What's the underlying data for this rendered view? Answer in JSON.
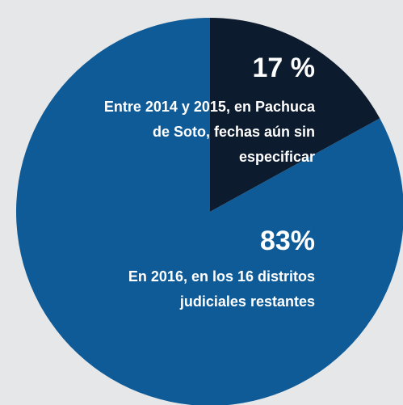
{
  "chart_data": {
    "type": "pie",
    "categories": [
      "Entre 2014 y 2015, en Pachuca de Soto, fechas aún sin especificar",
      "En 2016, en los 16 distritos judiciales restantes"
    ],
    "values": [
      17,
      83
    ],
    "value_labels": [
      "17 %",
      "83%"
    ],
    "colors": [
      "#0d1b2e",
      "#0f5b97"
    ]
  }
}
